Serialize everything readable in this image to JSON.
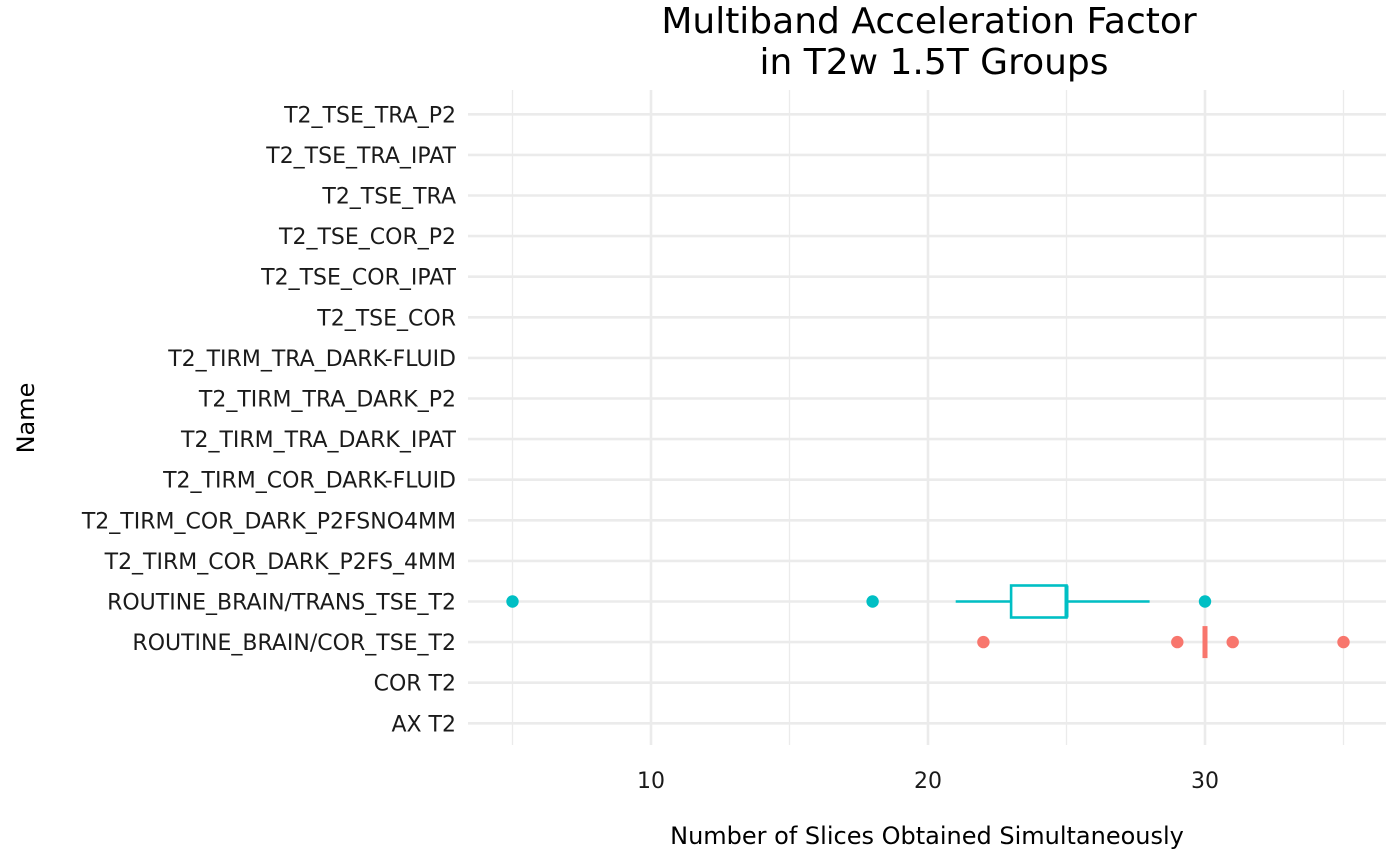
{
  "chart_data": {
    "type": "boxplot",
    "orientation": "horizontal",
    "title_lines": [
      "Multiband Acceleration Factor",
      "in T2w 1.5T Groups"
    ],
    "xlabel": "Number of Slices Obtained Simultaneously",
    "ylabel": "Name",
    "xlim": [
      3.5,
      36.5
    ],
    "x_ticks": [
      10,
      20,
      30
    ],
    "x_minor_ticks": [
      5,
      15,
      25,
      35
    ],
    "grid": true,
    "legend": "none",
    "categories": [
      "AX T2",
      "COR T2",
      "ROUTINE_BRAIN/COR_TSE_T2",
      "ROUTINE_BRAIN/TRANS_TSE_T2",
      "T2_TIRM_COR_DARK_P2FS_4MM",
      "T2_TIRM_COR_DARK_P2FSNO4MM",
      "T2_TIRM_COR_DARK-FLUID",
      "T2_TIRM_TRA_DARK_IPAT",
      "T2_TIRM_TRA_DARK_P2",
      "T2_TIRM_TRA_DARK-FLUID",
      "T2_TSE_COR",
      "T2_TSE_COR_IPAT",
      "T2_TSE_COR_P2",
      "T2_TSE_TRA",
      "T2_TSE_TRA_IPAT",
      "T2_TSE_TRA_P2"
    ],
    "boxes": [
      {
        "category": "ROUTINE_BRAIN/COR_TSE_T2",
        "color": "#f8766d",
        "whisker_low": 30,
        "q1": 30,
        "median": 30,
        "q3": 30,
        "whisker_high": 30,
        "outliers": [
          22,
          29,
          31,
          35
        ]
      },
      {
        "category": "ROUTINE_BRAIN/TRANS_TSE_T2",
        "color": "#00bfc4",
        "whisker_low": 21,
        "q1": 23,
        "median": 25,
        "q3": 25,
        "whisker_high": 28,
        "outliers": [
          5,
          18,
          30
        ]
      }
    ]
  }
}
